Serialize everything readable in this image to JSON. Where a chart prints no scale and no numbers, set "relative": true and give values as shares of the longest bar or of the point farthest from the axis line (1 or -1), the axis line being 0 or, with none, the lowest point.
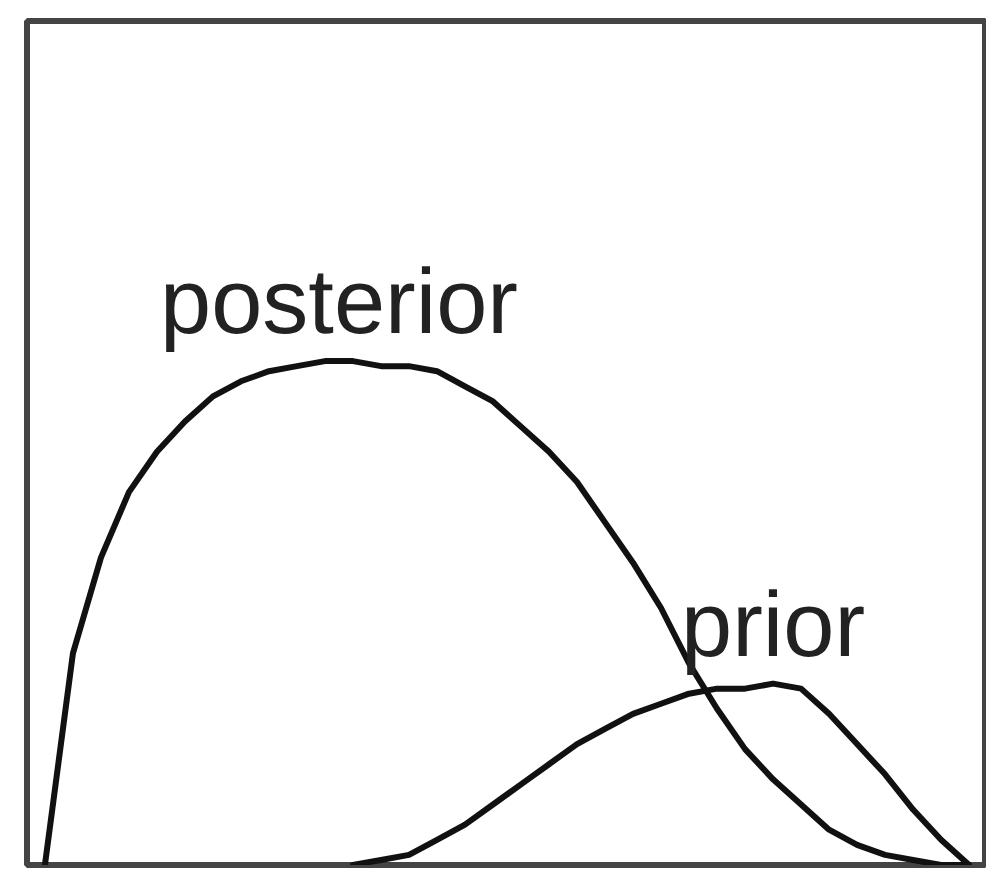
{
  "chart_data": {
    "type": "line",
    "relative": true,
    "tick_labels": false,
    "line_style": "solid",
    "categories": [
      null,
      null,
      null,
      null,
      null,
      null,
      null,
      null,
      null,
      null,
      null,
      null,
      null,
      null,
      null,
      null,
      null,
      null,
      null,
      null,
      null,
      null,
      null,
      null,
      null,
      null,
      null,
      null,
      null,
      null,
      null,
      null,
      null,
      null
    ],
    "series": [
      {
        "name": "posterior",
        "color": "#111111",
        "values": [
          0,
          0.42,
          0.61,
          0.74,
          0.82,
          0.88,
          0.93,
          0.96,
          0.98,
          0.99,
          1.0,
          1.0,
          0.99,
          0.99,
          0.98,
          0.95,
          0.92,
          0.87,
          0.82,
          0.76,
          0.68,
          0.6,
          0.51,
          0.4,
          0.31,
          0.23,
          0.17,
          0.12,
          0.07,
          0.04,
          0.02,
          0.01,
          0,
          0
        ]
      },
      {
        "name": "prior",
        "color": "#111111",
        "values": [
          null,
          null,
          null,
          null,
          null,
          null,
          null,
          null,
          null,
          null,
          null,
          0,
          0.01,
          0.02,
          0.05,
          0.08,
          0.12,
          0.16,
          0.2,
          0.24,
          0.27,
          0.3,
          0.32,
          0.34,
          0.35,
          0.35,
          0.36,
          0.35,
          0.3,
          0.24,
          0.18,
          0.11,
          0.05,
          0
        ]
      }
    ]
  }
}
